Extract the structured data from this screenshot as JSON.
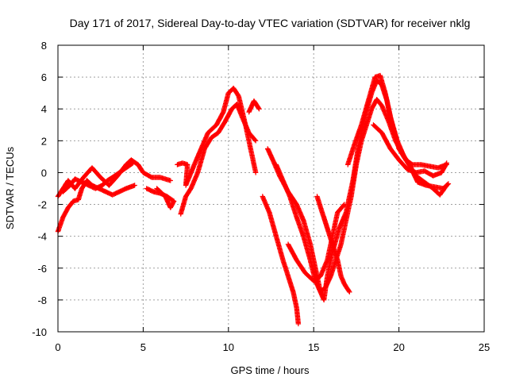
{
  "chart_data": {
    "type": "scatter",
    "title": "Day 171 of 2017, Sidereal Day-to-day VTEC variation (SDTVAR) for receiver nklg",
    "xlabel": "GPS time / hours",
    "ylabel": "SDTVAR / TECUs",
    "xlim": [
      0,
      25
    ],
    "ylim": [
      -10,
      8
    ],
    "xticks": [
      0,
      5,
      10,
      15,
      20,
      25
    ],
    "yticks": [
      -10,
      -8,
      -6,
      -4,
      -2,
      0,
      2,
      4,
      6,
      8
    ],
    "xtick_labels": [
      "0",
      "5",
      "10",
      "15",
      "20",
      "25"
    ],
    "ytick_labels": [
      "-10",
      "-8",
      "-6",
      "-4",
      "-2",
      "0",
      "2",
      "4",
      "6",
      "8"
    ],
    "grid": true,
    "marker": "+",
    "color": "#ff0000",
    "series": [
      {
        "name": "track-1",
        "points": [
          [
            0.0,
            -1.5
          ],
          [
            0.3,
            -1.0
          ],
          [
            0.6,
            -0.5
          ],
          [
            1.0,
            -1.0
          ],
          [
            1.5,
            -0.3
          ],
          [
            2.0,
            0.3
          ],
          [
            2.5,
            -0.3
          ],
          [
            3.0,
            -0.8
          ],
          [
            3.5,
            -0.2
          ],
          [
            4.0,
            0.5
          ],
          [
            4.3,
            0.8
          ],
          [
            4.7,
            0.5
          ],
          [
            5.0,
            0.0
          ],
          [
            5.5,
            -0.3
          ],
          [
            6.0,
            -0.3
          ],
          [
            6.6,
            -0.5
          ]
        ]
      },
      {
        "name": "track-2",
        "points": [
          [
            0.0,
            -3.7
          ],
          [
            0.3,
            -2.8
          ],
          [
            0.6,
            -2.2
          ],
          [
            0.9,
            -1.8
          ],
          [
            1.2,
            -1.7
          ],
          [
            1.4,
            -1.0
          ],
          [
            1.7,
            -0.5
          ],
          [
            2.0,
            -0.8
          ],
          [
            2.4,
            -1.0
          ],
          [
            2.8,
            -1.2
          ],
          [
            3.2,
            -1.4
          ],
          [
            3.6,
            -1.2
          ],
          [
            4.0,
            -1.0
          ],
          [
            4.5,
            -0.8
          ]
        ]
      },
      {
        "name": "track-3",
        "points": [
          [
            0.3,
            -1.2
          ],
          [
            0.7,
            -0.8
          ],
          [
            1.0,
            -0.4
          ],
          [
            1.4,
            -0.6
          ],
          [
            1.8,
            -0.8
          ],
          [
            2.2,
            -1.0
          ],
          [
            2.6,
            -0.8
          ],
          [
            2.9,
            -0.5
          ],
          [
            3.2,
            -0.3
          ],
          [
            3.6,
            0.0
          ],
          [
            4.0,
            0.3
          ],
          [
            4.4,
            0.6
          ]
        ]
      },
      {
        "name": "track-4",
        "points": [
          [
            5.2,
            -1.0
          ],
          [
            5.6,
            -1.2
          ],
          [
            6.0,
            -1.3
          ],
          [
            6.4,
            -1.5
          ],
          [
            6.8,
            -1.8
          ],
          [
            6.6,
            -2.2
          ],
          [
            6.3,
            -1.5
          ],
          [
            5.8,
            -1.0
          ]
        ]
      },
      {
        "name": "track-5",
        "points": [
          [
            7.0,
            0.5
          ],
          [
            7.3,
            0.6
          ],
          [
            7.6,
            0.5
          ],
          [
            7.5,
            -0.8
          ],
          [
            8.0,
            0.5
          ],
          [
            8.4,
            1.5
          ],
          [
            8.8,
            2.5
          ],
          [
            9.3,
            3.0
          ],
          [
            9.7,
            3.8
          ],
          [
            10.0,
            5.0
          ],
          [
            10.3,
            5.3
          ],
          [
            10.6,
            4.8
          ],
          [
            11.0,
            3.0
          ],
          [
            11.3,
            1.5
          ],
          [
            11.6,
            0.0
          ]
        ]
      },
      {
        "name": "track-6",
        "points": [
          [
            7.2,
            -2.6
          ],
          [
            7.5,
            -1.5
          ],
          [
            7.8,
            -1.0
          ],
          [
            8.2,
            0.0
          ],
          [
            8.6,
            1.5
          ],
          [
            9.0,
            2.2
          ],
          [
            9.4,
            2.5
          ],
          [
            9.8,
            3.2
          ],
          [
            10.2,
            4.0
          ],
          [
            10.5,
            4.3
          ],
          [
            10.8,
            3.5
          ],
          [
            11.2,
            2.5
          ],
          [
            11.6,
            2.0
          ]
        ]
      },
      {
        "name": "track-7",
        "points": [
          [
            11.2,
            3.8
          ],
          [
            11.5,
            4.5
          ],
          [
            11.8,
            4.0
          ]
        ]
      },
      {
        "name": "track-8",
        "points": [
          [
            12.3,
            1.5
          ],
          [
            12.6,
            0.8
          ],
          [
            13.0,
            -0.2
          ],
          [
            13.5,
            -1.2
          ],
          [
            14.0,
            -2.0
          ],
          [
            14.4,
            -3.0
          ],
          [
            14.8,
            -4.5
          ],
          [
            15.0,
            -5.5
          ],
          [
            15.2,
            -6.5
          ],
          [
            15.4,
            -7.5
          ],
          [
            15.6,
            -8.0
          ],
          [
            15.8,
            -6.5
          ],
          [
            16.1,
            -5.0
          ],
          [
            16.5,
            -3.5
          ],
          [
            16.9,
            -2.5
          ],
          [
            17.3,
            -0.5
          ],
          [
            17.6,
            1.5
          ],
          [
            18.0,
            3.5
          ],
          [
            18.4,
            5.0
          ],
          [
            18.7,
            5.8
          ],
          [
            19.0,
            5.5
          ],
          [
            19.3,
            4.5
          ],
          [
            19.6,
            3.0
          ],
          [
            20.0,
            1.5
          ],
          [
            20.4,
            0.8
          ],
          [
            20.8,
            0.5
          ],
          [
            21.3,
            0.5
          ],
          [
            21.8,
            0.4
          ],
          [
            22.3,
            0.3
          ],
          [
            22.8,
            0.5
          ]
        ]
      },
      {
        "name": "track-9",
        "points": [
          [
            12.0,
            -1.5
          ],
          [
            12.4,
            -2.5
          ],
          [
            12.8,
            -4.0
          ],
          [
            13.2,
            -5.5
          ],
          [
            13.5,
            -6.5
          ],
          [
            13.8,
            -7.5
          ],
          [
            14.0,
            -8.5
          ],
          [
            14.1,
            -9.5
          ]
        ]
      },
      {
        "name": "track-10",
        "points": [
          [
            12.8,
            0.5
          ],
          [
            13.2,
            -0.5
          ],
          [
            13.6,
            -1.5
          ],
          [
            14.0,
            -2.8
          ],
          [
            14.4,
            -4.0
          ],
          [
            14.8,
            -5.5
          ],
          [
            15.1,
            -6.8
          ],
          [
            15.4,
            -7.5
          ],
          [
            15.7,
            -7.2
          ],
          [
            16.0,
            -6.5
          ],
          [
            16.3,
            -5.5
          ],
          [
            16.6,
            -4.5
          ],
          [
            16.9,
            -3.0
          ],
          [
            17.2,
            -1.5
          ],
          [
            17.5,
            0.5
          ],
          [
            17.8,
            2.0
          ],
          [
            18.1,
            3.0
          ],
          [
            18.4,
            4.0
          ],
          [
            18.7,
            4.6
          ],
          [
            19.0,
            4.2
          ],
          [
            19.4,
            3.2
          ],
          [
            19.8,
            2.0
          ],
          [
            20.2,
            1.2
          ],
          [
            20.6,
            0.5
          ],
          [
            21.0,
            -0.2
          ],
          [
            21.5,
            -0.6
          ],
          [
            22.0,
            -1.0
          ],
          [
            22.4,
            -1.4
          ],
          [
            22.8,
            -0.8
          ]
        ]
      },
      {
        "name": "track-11",
        "points": [
          [
            13.5,
            -4.5
          ],
          [
            14.0,
            -5.5
          ],
          [
            14.5,
            -6.3
          ],
          [
            15.0,
            -6.8
          ],
          [
            15.4,
            -6.5
          ],
          [
            15.8,
            -5.5
          ],
          [
            16.1,
            -4.0
          ],
          [
            16.4,
            -2.5
          ],
          [
            16.8,
            -2.0
          ]
        ]
      },
      {
        "name": "track-12",
        "points": [
          [
            15.2,
            -1.5
          ],
          [
            15.5,
            -2.5
          ],
          [
            15.8,
            -3.5
          ],
          [
            16.1,
            -4.5
          ],
          [
            16.4,
            -5.5
          ],
          [
            16.6,
            -6.5
          ],
          [
            16.8,
            -7.0
          ],
          [
            17.1,
            -7.5
          ]
        ]
      },
      {
        "name": "track-13",
        "points": [
          [
            17.0,
            0.5
          ],
          [
            17.4,
            1.8
          ],
          [
            17.8,
            3.0
          ],
          [
            18.2,
            4.5
          ],
          [
            18.6,
            6.0
          ],
          [
            18.9,
            6.1
          ],
          [
            19.2,
            5.0
          ],
          [
            19.5,
            3.5
          ],
          [
            19.9,
            2.0
          ],
          [
            20.3,
            1.0
          ],
          [
            20.7,
            0.3
          ],
          [
            21.1,
            -0.6
          ],
          [
            21.6,
            -0.8
          ],
          [
            22.1,
            -0.9
          ],
          [
            22.6,
            -1.0
          ],
          [
            22.9,
            -0.7
          ]
        ]
      },
      {
        "name": "track-14",
        "points": [
          [
            18.5,
            3.0
          ],
          [
            19.0,
            2.5
          ],
          [
            19.5,
            1.5
          ],
          [
            20.0,
            0.8
          ],
          [
            20.5,
            0.2
          ],
          [
            21.0,
            0.0
          ],
          [
            21.5,
            0.1
          ],
          [
            22.0,
            -0.2
          ],
          [
            22.5,
            0.0
          ],
          [
            22.8,
            0.6
          ]
        ]
      }
    ]
  }
}
